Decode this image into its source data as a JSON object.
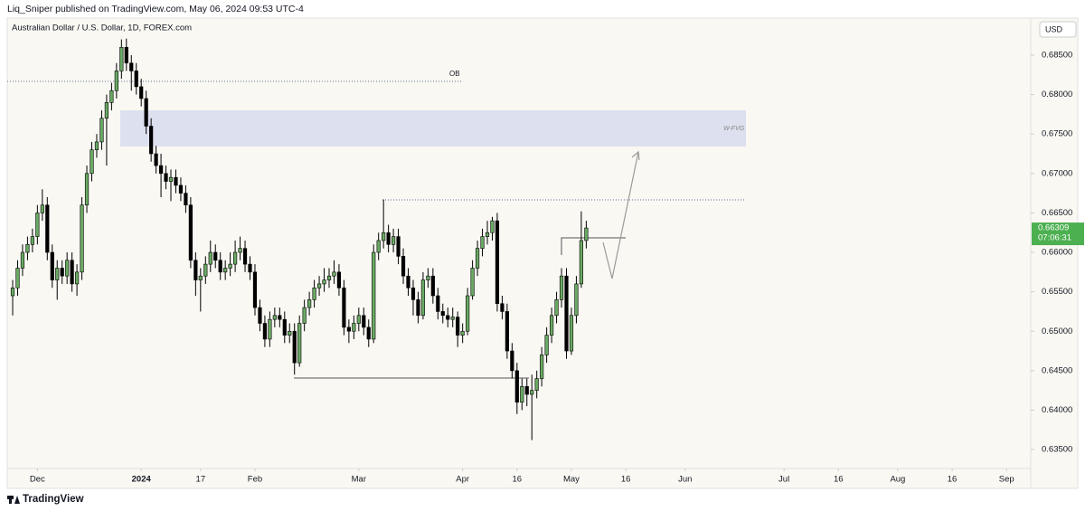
{
  "header": {
    "attribution": "Liq_Sniper published on TradingView.com, May 06, 2024 09:53 UTC-4"
  },
  "footer": {
    "brand": "TradingView"
  },
  "chart_data": {
    "type": "candlestick",
    "title": "Australian Dollar / U.S. Dollar, 1D, FOREX.com",
    "currency": "USD",
    "countdown": "07:06:31",
    "annotations": [
      "OB",
      "W-FVG"
    ],
    "up_color": "#6aaa64",
    "down_color": "#000000",
    "open": [
      0.6545,
      0.6555,
      0.658,
      0.66,
      0.661,
      0.662,
      0.665,
      0.666,
      0.66,
      0.6565,
      0.658,
      0.657,
      0.659,
      0.656,
      0.6575,
      0.666,
      0.67,
      0.673,
      0.674,
      0.677,
      0.679,
      0.6805,
      0.683,
      0.686,
      0.684,
      0.683,
      0.681,
      0.6795,
      0.676,
      0.6725,
      0.671,
      0.67,
      0.669,
      0.6695,
      0.6685,
      0.6675,
      0.666,
      0.659,
      0.6565,
      0.657,
      0.6585,
      0.66,
      0.659,
      0.6575,
      0.658,
      0.6585,
      0.66,
      0.6605,
      0.6585,
      0.6575,
      0.653,
      0.651,
      0.649,
      0.6515,
      0.652,
      0.6515,
      0.6495,
      0.65,
      0.646,
      0.651,
      0.653,
      0.654,
      0.6555,
      0.656,
      0.6565,
      0.657,
      0.6575,
      0.6555,
      0.6505,
      0.65,
      0.651,
      0.652,
      0.6505,
      0.649,
      0.66,
      0.6615,
      0.6625,
      0.661,
      0.662,
      0.6595,
      0.657,
      0.6555,
      0.654,
      0.652,
      0.6565,
      0.657,
      0.6545,
      0.6525,
      0.652,
      0.6515,
      0.6518,
      0.6495,
      0.65,
      0.6545,
      0.658,
      0.6605,
      0.662,
      0.6625,
      0.664,
      0.6535,
      0.6525,
      0.6475,
      0.645,
      0.641,
      0.643,
      0.642,
      0.6425,
      0.644,
      0.647,
      0.6495,
      0.652,
      0.654,
      0.657,
      0.6475,
      0.652,
      0.656,
      0.6615
    ],
    "high": [
      0.6565,
      0.659,
      0.661,
      0.662,
      0.663,
      0.666,
      0.668,
      0.667,
      0.661,
      0.659,
      0.659,
      0.66,
      0.66,
      0.6585,
      0.667,
      0.671,
      0.674,
      0.675,
      0.678,
      0.68,
      0.6815,
      0.684,
      0.687,
      0.6871,
      0.685,
      0.684,
      0.682,
      0.6805,
      0.677,
      0.6735,
      0.6725,
      0.671,
      0.6705,
      0.6705,
      0.6695,
      0.6685,
      0.667,
      0.66,
      0.658,
      0.6595,
      0.6615,
      0.661,
      0.66,
      0.659,
      0.66,
      0.6615,
      0.662,
      0.6615,
      0.6595,
      0.6585,
      0.654,
      0.652,
      0.6525,
      0.653,
      0.653,
      0.6525,
      0.651,
      0.651,
      0.652,
      0.654,
      0.655,
      0.6565,
      0.657,
      0.658,
      0.658,
      0.659,
      0.6585,
      0.6565,
      0.6515,
      0.652,
      0.653,
      0.653,
      0.6515,
      0.661,
      0.6625,
      0.6667,
      0.6635,
      0.663,
      0.663,
      0.6605,
      0.658,
      0.6565,
      0.655,
      0.6575,
      0.658,
      0.658,
      0.6555,
      0.6535,
      0.653,
      0.653,
      0.6525,
      0.651,
      0.6555,
      0.659,
      0.6615,
      0.663,
      0.664,
      0.6645,
      0.665,
      0.6545,
      0.6535,
      0.6485,
      0.646,
      0.644,
      0.644,
      0.6445,
      0.645,
      0.648,
      0.6505,
      0.653,
      0.655,
      0.658,
      0.658,
      0.653,
      0.657,
      0.6652,
      0.664
    ],
    "low": [
      0.652,
      0.6545,
      0.657,
      0.659,
      0.66,
      0.661,
      0.664,
      0.659,
      0.6555,
      0.654,
      0.656,
      0.656,
      0.655,
      0.6545,
      0.6565,
      0.665,
      0.669,
      0.672,
      0.673,
      0.671,
      0.678,
      0.6795,
      0.682,
      0.683,
      0.6805,
      0.68,
      0.6785,
      0.675,
      0.6715,
      0.67,
      0.667,
      0.668,
      0.6665,
      0.6675,
      0.6665,
      0.665,
      0.658,
      0.6545,
      0.6525,
      0.656,
      0.6575,
      0.658,
      0.6565,
      0.6565,
      0.657,
      0.6575,
      0.659,
      0.6575,
      0.6565,
      0.652,
      0.65,
      0.648,
      0.648,
      0.6505,
      0.6505,
      0.6485,
      0.6485,
      0.6445,
      0.6455,
      0.65,
      0.652,
      0.653,
      0.6545,
      0.655,
      0.6555,
      0.656,
      0.6545,
      0.6495,
      0.6485,
      0.649,
      0.65,
      0.6495,
      0.648,
      0.6485,
      0.659,
      0.6605,
      0.66,
      0.66,
      0.6585,
      0.656,
      0.6545,
      0.652,
      0.651,
      0.6515,
      0.6555,
      0.6535,
      0.6515,
      0.651,
      0.6505,
      0.6505,
      0.648,
      0.6485,
      0.6495,
      0.654,
      0.657,
      0.6595,
      0.661,
      0.6615,
      0.6525,
      0.6515,
      0.6465,
      0.644,
      0.6395,
      0.64,
      0.6405,
      0.6362,
      0.6415,
      0.643,
      0.646,
      0.6485,
      0.651,
      0.653,
      0.6465,
      0.647,
      0.651,
      0.6555,
      0.6605
    ],
    "close": [
      0.6555,
      0.658,
      0.66,
      0.661,
      0.662,
      0.665,
      0.666,
      0.66,
      0.6565,
      0.658,
      0.657,
      0.659,
      0.656,
      0.6575,
      0.666,
      0.67,
      0.673,
      0.674,
      0.677,
      0.679,
      0.6805,
      0.683,
      0.686,
      0.684,
      0.683,
      0.681,
      0.6795,
      0.676,
      0.6725,
      0.671,
      0.67,
      0.669,
      0.6695,
      0.6685,
      0.6675,
      0.666,
      0.659,
      0.6565,
      0.657,
      0.6585,
      0.66,
      0.659,
      0.6575,
      0.658,
      0.6585,
      0.66,
      0.6605,
      0.6585,
      0.6575,
      0.653,
      0.651,
      0.649,
      0.6515,
      0.652,
      0.6515,
      0.6495,
      0.65,
      0.646,
      0.651,
      0.653,
      0.654,
      0.6555,
      0.656,
      0.6565,
      0.657,
      0.6575,
      0.6555,
      0.6505,
      0.65,
      0.651,
      0.652,
      0.6505,
      0.649,
      0.66,
      0.6615,
      0.6625,
      0.661,
      0.662,
      0.6595,
      0.657,
      0.6555,
      0.654,
      0.652,
      0.6565,
      0.657,
      0.6545,
      0.6525,
      0.652,
      0.6515,
      0.6518,
      0.6495,
      0.65,
      0.6545,
      0.658,
      0.6605,
      0.662,
      0.6625,
      0.664,
      0.6535,
      0.6525,
      0.6475,
      0.645,
      0.641,
      0.643,
      0.642,
      0.6425,
      0.644,
      0.647,
      0.6495,
      0.652,
      0.654,
      0.657,
      0.6475,
      0.652,
      0.656,
      0.6615,
      0.66309
    ],
    "xlim": [
      -1.1,
      205.9
    ],
    "xticks": [
      {
        "value": 5,
        "label": "Dec"
      },
      {
        "value": 26,
        "label": "2024"
      },
      {
        "value": 38,
        "label": "17"
      },
      {
        "value": 49,
        "label": "Feb"
      },
      {
        "value": 70,
        "label": "Mar"
      },
      {
        "value": 91,
        "label": "Apr"
      },
      {
        "value": 102,
        "label": "16"
      },
      {
        "value": 113,
        "label": "May"
      },
      {
        "value": 124,
        "label": "16"
      },
      {
        "value": 136,
        "label": "Jun"
      },
      {
        "value": 156,
        "label": "Jul"
      },
      {
        "value": 167,
        "label": "16"
      },
      {
        "value": 179,
        "label": "Aug"
      },
      {
        "value": 190,
        "label": "16"
      },
      {
        "value": 201,
        "label": "Sep"
      }
    ],
    "ylim": [
      0.6326,
      0.6897
    ],
    "yticks": [
      {
        "value": 0.635,
        "label": "0.63500"
      },
      {
        "value": 0.64,
        "label": "0.64000"
      },
      {
        "value": 0.645,
        "label": "0.64500"
      },
      {
        "value": 0.65,
        "label": "0.65000"
      },
      {
        "value": 0.655,
        "label": "0.65500"
      },
      {
        "value": 0.66,
        "label": "0.66000"
      },
      {
        "value": 0.665,
        "label": "0.66500"
      },
      {
        "value": 0.67,
        "label": "0.67000"
      },
      {
        "value": 0.675,
        "label": "0.67500"
      },
      {
        "value": 0.68,
        "label": "0.68000"
      },
      {
        "value": 0.685,
        "label": "0.68500"
      }
    ],
    "grid": false
  }
}
